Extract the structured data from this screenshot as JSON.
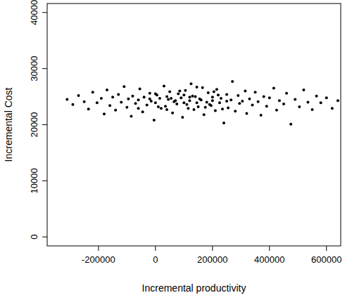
{
  "chart_data": {
    "type": "scatter",
    "x_label": "Incremental productivity",
    "y_label": "Incremental Cost",
    "color": "#000000",
    "marker": "circle",
    "xlim": [
      -380000,
      650000
    ],
    "xticks": [
      -200000,
      0,
      200000,
      400000,
      600000
    ],
    "ylim": [
      -1600,
      41600
    ],
    "yticks": [
      0,
      10000,
      20000,
      30000,
      40000
    ],
    "x": [
      -310000,
      -290000,
      -270000,
      -250000,
      -235000,
      -220000,
      -205000,
      -190000,
      -180000,
      -170000,
      -160000,
      -150000,
      -140000,
      -130000,
      -120000,
      -110000,
      -100000,
      -95000,
      -85000,
      -80000,
      -70000,
      -60000,
      -55000,
      -45000,
      -40000,
      -30000,
      -20000,
      -15000,
      -5000,
      0,
      5000,
      15000,
      20000,
      30000,
      35000,
      45000,
      50000,
      60000,
      65000,
      75000,
      80000,
      90000,
      95000,
      105000,
      110000,
      120000,
      125000,
      135000,
      140000,
      150000,
      155000,
      165000,
      170000,
      180000,
      185000,
      195000,
      200000,
      210000,
      215000,
      225000,
      230000,
      240000,
      250000,
      255000,
      265000,
      270000,
      280000,
      290000,
      295000,
      305000,
      315000,
      320000,
      330000,
      340000,
      350000,
      360000,
      370000,
      380000,
      390000,
      400000,
      415000,
      425000,
      435000,
      450000,
      460000,
      475000,
      490000,
      505000,
      520000,
      535000,
      550000,
      565000,
      580000,
      600000,
      620000,
      640000,
      -20000,
      10000,
      40000,
      70000,
      100000,
      130000,
      160000,
      190000,
      220000,
      250000,
      40000,
      85000,
      115000,
      145000,
      175000,
      205000,
      235000,
      0,
      -60000,
      55000,
      100000,
      145000,
      200000,
      120000
    ],
    "values": [
      24500,
      23600,
      25200,
      24100,
      22800,
      25800,
      23900,
      24700,
      21900,
      26200,
      23400,
      24900,
      22600,
      25400,
      24000,
      26800,
      23100,
      24600,
      21500,
      25100,
      23800,
      24400,
      26400,
      22300,
      24900,
      23500,
      25600,
      24200,
      20800,
      23900,
      25300,
      24700,
      22900,
      26900,
      23300,
      24500,
      25900,
      22100,
      24100,
      23700,
      25500,
      24800,
      21300,
      26100,
      23600,
      24300,
      27300,
      22700,
      25000,
      23200,
      24600,
      26600,
      21800,
      24000,
      25700,
      23400,
      24900,
      22500,
      26300,
      23900,
      24700,
      20300,
      25400,
      23000,
      24400,
      27700,
      22400,
      25200,
      23800,
      24200,
      26000,
      22000,
      24600,
      23500,
      25800,
      24100,
      21700,
      25000,
      23300,
      24800,
      26500,
      22600,
      24300,
      23700,
      25600,
      20100,
      24500,
      23200,
      26200,
      24000,
      22700,
      25100,
      23900,
      24800,
      22900,
      24300,
      24600,
      23200,
      25000,
      24300,
      23900,
      25100,
      24400,
      23600,
      25300,
      24200,
      22700,
      26000,
      22900,
      26700,
      23100,
      25900,
      22800,
      25500,
      22900,
      24700,
      25300,
      23900,
      24300,
      24900
    ]
  }
}
